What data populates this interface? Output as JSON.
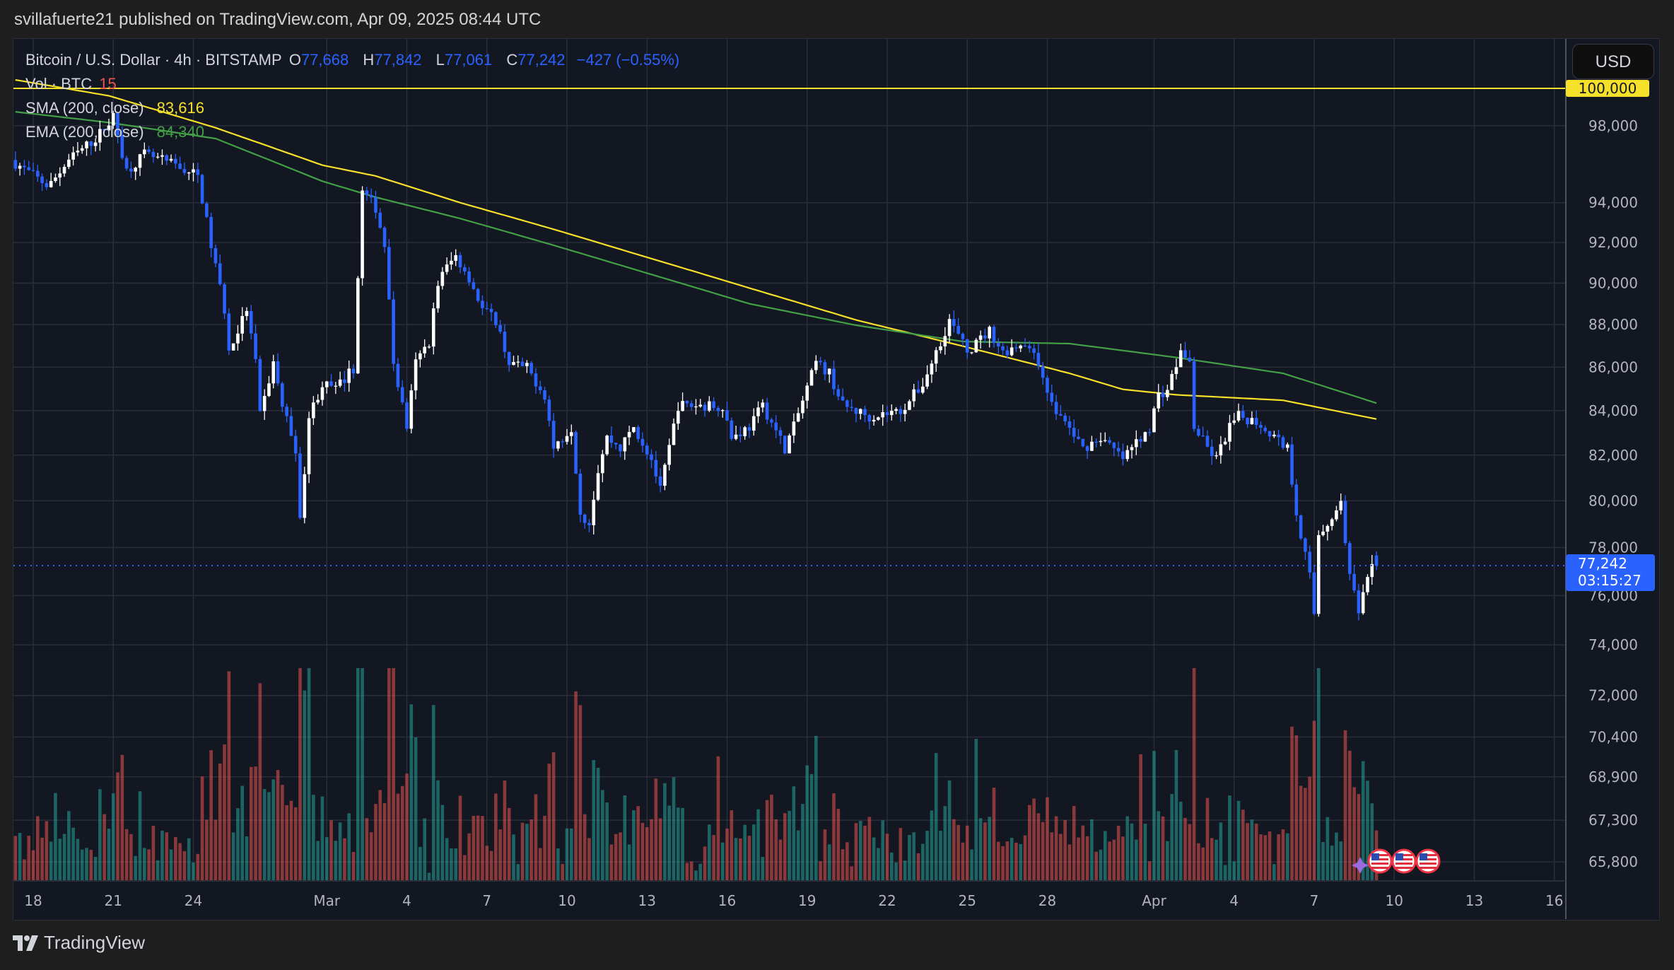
{
  "header": {
    "published": "svillafuerte21 published on TradingView.com, Apr 09, 2025 08:44 UTC"
  },
  "legend": {
    "symbol": "Bitcoin / U.S. Dollar · 4h · BITSTAMP",
    "o_label": "O",
    "o": "77,668",
    "h_label": "H",
    "h": "77,842",
    "l_label": "L",
    "l": "77,061",
    "c_label": "C",
    "c": "77,242",
    "change": "−427 (−0.55%)",
    "vol_label": "Vol · BTC",
    "vol": "15",
    "sma_label": "SMA (200, close)",
    "sma": "83,616",
    "ema_label": "EMA (200, close)",
    "ema": "84,340"
  },
  "price_axis": {
    "currency": "USD",
    "last_price": "77,242",
    "countdown": "03:15:27",
    "level_label": "100,000"
  },
  "footer": {
    "brand": "TradingView"
  },
  "colors": {
    "up": "#ffffff",
    "down": "#2962ff",
    "sma": "#f5e02a",
    "ema": "#43a047",
    "vol_up": "#26a69a",
    "vol_down": "#ef5350",
    "bg": "#131722",
    "grid": "#2a2e39"
  },
  "chart_data": {
    "type": "candlestick",
    "interval": "4h",
    "y_scale": "log",
    "grid": true,
    "last_bar": {
      "time": "2025-04-09T08:00",
      "open": 77668,
      "high": 77842,
      "low": 77061,
      "close": 77242
    },
    "closes": [
      [
        "2025-02-17T08:00",
        96200
      ],
      [
        "2025-02-18T18:00",
        94830
      ],
      [
        "2025-02-19T12:00",
        96200
      ],
      [
        "2025-02-20T12:00",
        97320
      ],
      [
        "2025-02-21T04:00",
        98450
      ],
      [
        "2025-02-21T16:00",
        95650
      ],
      [
        "2025-02-22T08:00",
        96480
      ],
      [
        "2025-02-23T12:00",
        95920
      ],
      [
        "2025-02-24T08:00",
        95370
      ],
      [
        "2025-02-24T20:00",
        91860
      ],
      [
        "2025-02-25T08:00",
        88730
      ],
      [
        "2025-02-25T12:00",
        86700
      ],
      [
        "2025-02-26T04:00",
        88730
      ],
      [
        "2025-02-26T12:00",
        86200
      ],
      [
        "2025-02-26T16:00",
        83740
      ],
      [
        "2025-02-27T04:00",
        86200
      ],
      [
        "2025-02-27T12:00",
        84230
      ],
      [
        "2025-02-28T00:00",
        82310
      ],
      [
        "2025-02-28T04:00",
        79050
      ],
      [
        "2025-02-28T12:00",
        83740
      ],
      [
        "2025-03-01T00:00",
        85210
      ],
      [
        "2025-03-01T12:00",
        84970
      ],
      [
        "2025-03-02T04:00",
        85950
      ],
      [
        "2025-03-02T12:00",
        94550
      ],
      [
        "2025-03-03T00:00",
        93740
      ],
      [
        "2025-03-03T08:00",
        91860
      ],
      [
        "2025-03-03T16:00",
        86200
      ],
      [
        "2025-03-04T04:00",
        83270
      ],
      [
        "2025-03-04T12:00",
        86200
      ],
      [
        "2025-03-05T00:00",
        87200
      ],
      [
        "2025-03-05T08:00",
        90020
      ],
      [
        "2025-03-05T16:00",
        90800
      ],
      [
        "2025-03-06T00:00",
        91330
      ],
      [
        "2025-03-06T12:00",
        90280
      ],
      [
        "2025-03-07T00:00",
        88730
      ],
      [
        "2025-03-07T12:00",
        88220
      ],
      [
        "2025-03-08T00:00",
        86200
      ],
      [
        "2025-03-08T16:00",
        85950
      ],
      [
        "2025-03-09T08:00",
        84720
      ],
      [
        "2025-03-09T16:00",
        82310
      ],
      [
        "2025-03-10T08:00",
        83270
      ],
      [
        "2025-03-10T16:00",
        79510
      ],
      [
        "2025-03-11T00:00",
        79050
      ],
      [
        "2025-03-11T08:00",
        81370
      ],
      [
        "2025-03-11T16:00",
        82790
      ],
      [
        "2025-03-12T04:00",
        82310
      ],
      [
        "2025-03-12T16:00",
        83270
      ],
      [
        "2025-03-13T08:00",
        81830
      ],
      [
        "2025-03-13T16:00",
        80430
      ],
      [
        "2025-03-14T08:00",
        84230
      ],
      [
        "2025-03-15T00:00",
        84230
      ],
      [
        "2025-03-16T00:00",
        84230
      ],
      [
        "2025-03-16T08:00",
        82790
      ],
      [
        "2025-03-17T00:00",
        83270
      ],
      [
        "2025-03-17T12:00",
        84230
      ],
      [
        "2025-03-18T08:00",
        82310
      ],
      [
        "2025-03-18T16:00",
        83270
      ],
      [
        "2025-03-19T12:00",
        86200
      ],
      [
        "2025-03-20T00:00",
        85710
      ],
      [
        "2025-03-20T12:00",
        84230
      ],
      [
        "2025-03-21T12:00",
        83740
      ],
      [
        "2025-03-22T16:00",
        83990
      ],
      [
        "2025-03-23T12:00",
        85210
      ],
      [
        "2025-03-24T00:00",
        86700
      ],
      [
        "2025-03-24T12:00",
        88220
      ],
      [
        "2025-03-25T04:00",
        86700
      ],
      [
        "2025-03-26T00:00",
        87710
      ],
      [
        "2025-03-26T12:00",
        86700
      ],
      [
        "2025-03-27T08:00",
        87200
      ],
      [
        "2025-03-28T00:00",
        85710
      ],
      [
        "2025-03-28T08:00",
        84230
      ],
      [
        "2025-03-28T16:00",
        83740
      ],
      [
        "2025-03-29T12:00",
        82310
      ],
      [
        "2025-03-30T04:00",
        82790
      ],
      [
        "2025-03-31T00:00",
        81830
      ],
      [
        "2025-03-31T08:00",
        82310
      ],
      [
        "2025-04-01T00:00",
        83270
      ],
      [
        "2025-04-01T08:00",
        84720
      ],
      [
        "2025-04-01T16:00",
        84970
      ],
      [
        "2025-04-02T04:00",
        86700
      ],
      [
        "2025-04-02T12:00",
        86200
      ],
      [
        "2025-04-02T16:00",
        83270
      ],
      [
        "2025-04-03T04:00",
        82310
      ],
      [
        "2025-04-03T12:00",
        81830
      ],
      [
        "2025-04-04T00:00",
        83270
      ],
      [
        "2025-04-04T08:00",
        83740
      ],
      [
        "2025-04-05T00:00",
        83510
      ],
      [
        "2025-04-05T12:00",
        83030
      ],
      [
        "2025-04-06T04:00",
        82310
      ],
      [
        "2025-04-06T12:00",
        79510
      ],
      [
        "2025-04-07T00:00",
        76800
      ],
      [
        "2025-04-07T04:00",
        75260
      ],
      [
        "2025-04-07T08:00",
        78600
      ],
      [
        "2025-04-07T16:00",
        79050
      ],
      [
        "2025-04-08T00:00",
        79510
      ],
      [
        "2025-04-08T04:00",
        79970
      ],
      [
        "2025-04-08T12:00",
        76800
      ],
      [
        "2025-04-08T20:00",
        75260
      ],
      [
        "2025-04-09T08:00",
        77242
      ]
    ],
    "sma_200": [
      [
        "2025-02-17T08:00",
        100460
      ],
      [
        "2025-02-20T20:00",
        99600
      ],
      [
        "2025-02-24T20:00",
        97890
      ],
      [
        "2025-02-28T20:00",
        95930
      ],
      [
        "2025-03-02T20:00",
        95370
      ],
      [
        "2025-03-06T00:00",
        94000
      ],
      [
        "2025-03-09T12:00",
        92660
      ],
      [
        "2025-03-12T20:00",
        91330
      ],
      [
        "2025-03-16T20:00",
        89760
      ],
      [
        "2025-03-20T20:00",
        88220
      ],
      [
        "2025-03-24T20:00",
        86980
      ],
      [
        "2025-03-28T20:00",
        85710
      ],
      [
        "2025-03-30T20:00",
        84970
      ],
      [
        "2025-04-01T20:00",
        84720
      ],
      [
        "2025-04-05T20:00",
        84470
      ],
      [
        "2025-04-09T08:00",
        83616
      ]
    ],
    "ema_200": [
      [
        "2025-02-17T08:00",
        98740
      ],
      [
        "2025-02-20T20:00",
        98170
      ],
      [
        "2025-02-24T20:00",
        97320
      ],
      [
        "2025-02-28T20:00",
        95100
      ],
      [
        "2025-03-02T20:00",
        94280
      ],
      [
        "2025-03-06T00:00",
        93200
      ],
      [
        "2025-03-09T12:00",
        91860
      ],
      [
        "2025-03-12T20:00",
        90550
      ],
      [
        "2025-03-16T20:00",
        89000
      ],
      [
        "2025-03-20T20:00",
        87970
      ],
      [
        "2025-03-24T20:00",
        87200
      ],
      [
        "2025-03-28T20:00",
        87100
      ],
      [
        "2025-04-01T20:00",
        86450
      ],
      [
        "2025-04-05T20:00",
        85710
      ],
      [
        "2025-04-09T08:00",
        84340
      ]
    ],
    "horizontal_level": 100000,
    "y_ticks": [
      {
        "value": 98000,
        "label": "98,000"
      },
      {
        "value": 94000,
        "label": "94,000"
      },
      {
        "value": 92000,
        "label": "92,000"
      },
      {
        "value": 90000,
        "label": "90,000"
      },
      {
        "value": 88000,
        "label": "88,000"
      },
      {
        "value": 86000,
        "label": "86,000"
      },
      {
        "value": 84000,
        "label": "84,000"
      },
      {
        "value": 82000,
        "label": "82,000"
      },
      {
        "value": 80000,
        "label": "80,000"
      },
      {
        "value": 78000,
        "label": "78,000"
      },
      {
        "value": 76000,
        "label": "76,000"
      },
      {
        "value": 74000,
        "label": "74,000"
      },
      {
        "value": 72000,
        "label": "72,000"
      },
      {
        "value": 70400,
        "label": "70,400"
      },
      {
        "value": 68900,
        "label": "68,900"
      },
      {
        "value": 67300,
        "label": "67,300"
      },
      {
        "value": 65800,
        "label": "65,800"
      }
    ],
    "x_ticks": [
      {
        "date": "2025-02-18",
        "label": "18"
      },
      {
        "date": "2025-02-21",
        "label": "21"
      },
      {
        "date": "2025-02-24",
        "label": "24"
      },
      {
        "date": "2025-03-01",
        "label": "Mar"
      },
      {
        "date": "2025-03-04",
        "label": "4"
      },
      {
        "date": "2025-03-07",
        "label": "7"
      },
      {
        "date": "2025-03-10",
        "label": "10"
      },
      {
        "date": "2025-03-13",
        "label": "13"
      },
      {
        "date": "2025-03-16",
        "label": "16"
      },
      {
        "date": "2025-03-19",
        "label": "19"
      },
      {
        "date": "2025-03-22",
        "label": "22"
      },
      {
        "date": "2025-03-25",
        "label": "25"
      },
      {
        "date": "2025-03-28",
        "label": "28"
      },
      {
        "date": "2025-04-01",
        "label": "Apr"
      },
      {
        "date": "2025-04-04",
        "label": "4"
      },
      {
        "date": "2025-04-07",
        "label": "7"
      },
      {
        "date": "2025-04-10",
        "label": "10"
      },
      {
        "date": "2025-04-13",
        "label": "13"
      },
      {
        "date": "2025-04-16",
        "label": "16"
      }
    ],
    "event_icons": [
      "us-flag-icon",
      "us-flag-icon",
      "us-flag-icon"
    ]
  }
}
